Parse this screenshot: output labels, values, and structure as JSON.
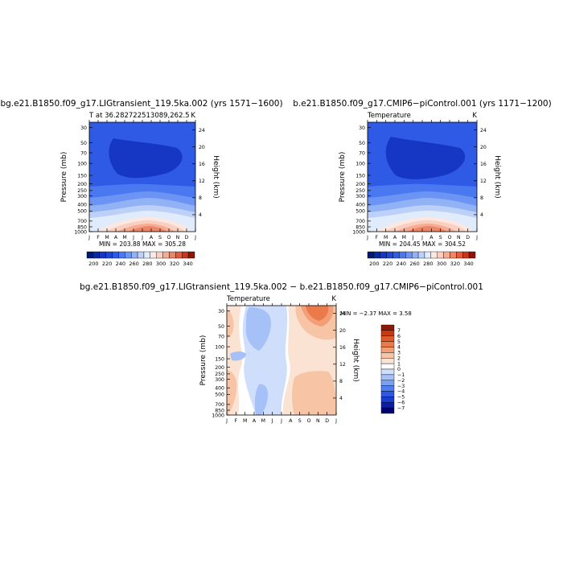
{
  "panels": [
    {
      "id": "p1",
      "title": "bg.e21.B1850.f09_g17.LIGtransient_119.5ka.002 (yrs 1571−1600)",
      "left_label": "T at 36.282722513089,262.5",
      "right_label": "K",
      "minmax": "MIN = 203.88 MAX = 305.28",
      "ylabel": "Pressure (mb)",
      "y2label": "Height (km)",
      "pressure_ticks": [
        "30",
        "50",
        "70",
        "100",
        "150",
        "200",
        "250",
        "300",
        "400",
        "500",
        "700",
        "850",
        "1000"
      ],
      "height_ticks": [
        "24",
        "20",
        "16",
        "12",
        "8",
        "4"
      ],
      "month_ticks": [
        "J",
        "F",
        "M",
        "A",
        "M",
        "J",
        "J",
        "A",
        "S",
        "O",
        "N",
        "D",
        "J"
      ],
      "colorbar_labels": [
        "200",
        "220",
        "240",
        "260",
        "280",
        "300",
        "320",
        "340"
      ]
    },
    {
      "id": "p2",
      "title": "b.e21.B1850.f09_g17.CMIP6−piControl.001 (yrs 1171−1200)",
      "left_label": "Temperature",
      "right_label": "K",
      "minmax": "MIN = 204.45 MAX = 304.52",
      "ylabel": "Pressure (mb)",
      "y2label": "Height (km)",
      "pressure_ticks": [
        "30",
        "50",
        "70",
        "100",
        "150",
        "200",
        "250",
        "300",
        "400",
        "500",
        "700",
        "850",
        "1000"
      ],
      "height_ticks": [
        "24",
        "20",
        "16",
        "12",
        "8",
        "4"
      ],
      "month_ticks": [
        "J",
        "F",
        "M",
        "A",
        "M",
        "J",
        "J",
        "A",
        "S",
        "O",
        "N",
        "D",
        "J"
      ],
      "colorbar_labels": [
        "200",
        "220",
        "240",
        "260",
        "280",
        "300",
        "320",
        "340"
      ]
    },
    {
      "id": "p3",
      "title": "bg.e21.B1850.f09_g17.LIGtransient_119.5ka.002 − b.e21.B1850.f09_g17.CMIP6−piControl.001",
      "left_label": "Temperature",
      "right_label": "K",
      "minmax": "MIN = −2.37 MAX =   3.58",
      "ylabel": "Pressure (mb)",
      "y2label": "Height (km)",
      "pressure_ticks": [
        "30",
        "50",
        "70",
        "100",
        "150",
        "200",
        "250",
        "300",
        "400",
        "500",
        "700",
        "850",
        "1000"
      ],
      "height_ticks": [
        "24",
        "20",
        "16",
        "12",
        "8",
        "4"
      ],
      "month_ticks": [
        "J",
        "F",
        "M",
        "A",
        "M",
        "J",
        "J",
        "A",
        "S",
        "O",
        "N",
        "D",
        "J"
      ],
      "colorbar_labels": [
        "7",
        "6",
        "5",
        "4",
        "3",
        "2",
        "1",
        "0",
        "−1",
        "−2",
        "−3",
        "−4",
        "−5",
        "−6",
        "−7"
      ]
    }
  ],
  "chart_data": [
    {
      "type": "heatmap",
      "title": "bg.e21.B1850.f09_g17.LIGtransient_119.5ka.002 (yrs 1571−1600)",
      "subtitle": "T at 36.282722513089,262.5",
      "units": "K",
      "x": [
        "J",
        "F",
        "M",
        "A",
        "M",
        "J",
        "J",
        "A",
        "S",
        "O",
        "N",
        "D",
        "J"
      ],
      "y_pressure_mb": [
        1000,
        850,
        700,
        500,
        400,
        300,
        250,
        200,
        150,
        100,
        70,
        50,
        30
      ],
      "z_summer_peak_K": [
        302,
        291,
        282,
        265,
        252,
        238,
        228,
        219,
        213,
        210,
        212,
        215,
        219
      ],
      "z_winter_K": [
        282,
        273,
        264,
        250,
        240,
        228,
        222,
        218,
        216,
        215,
        215,
        216,
        218
      ],
      "min": 203.88,
      "max": 305.28,
      "colorbar": {
        "min": 190,
        "max": 350,
        "step": 10,
        "labels": [
          200,
          220,
          240,
          260,
          280,
          300,
          320,
          340
        ]
      }
    },
    {
      "type": "heatmap",
      "title": "b.e21.B1850.f09_g17.CMIP6−piControl.001 (yrs 1171−1200)",
      "subtitle": "Temperature",
      "units": "K",
      "x": [
        "J",
        "F",
        "M",
        "A",
        "M",
        "J",
        "J",
        "A",
        "S",
        "O",
        "N",
        "D",
        "J"
      ],
      "y_pressure_mb": [
        1000,
        850,
        700,
        500,
        400,
        300,
        250,
        200,
        150,
        100,
        70,
        50,
        30
      ],
      "z_summer_peak_K": [
        301,
        290,
        281,
        264,
        251,
        237,
        227,
        218,
        212,
        209,
        211,
        214,
        218
      ],
      "z_winter_K": [
        282,
        273,
        264,
        250,
        240,
        228,
        222,
        218,
        216,
        215,
        215,
        216,
        218
      ],
      "min": 204.45,
      "max": 304.52,
      "colorbar": {
        "min": 190,
        "max": 350,
        "step": 10,
        "labels": [
          200,
          220,
          240,
          260,
          280,
          300,
          320,
          340
        ]
      }
    },
    {
      "type": "heatmap",
      "title": "bg.e21.B1850.f09_g17.LIGtransient_119.5ka.002 − b.e21.B1850.f09_g17.CMIP6−piControl.001",
      "subtitle": "Temperature",
      "units": "K",
      "x": [
        "J",
        "F",
        "M",
        "A",
        "M",
        "J",
        "J",
        "A",
        "S",
        "O",
        "N",
        "D",
        "J"
      ],
      "y_pressure_mb": [
        1000,
        850,
        700,
        500,
        400,
        300,
        250,
        200,
        150,
        100,
        70,
        50,
        30
      ],
      "min": -2.37,
      "max": 3.58,
      "colorbar": {
        "min": -8,
        "max": 8,
        "step": 1,
        "labels": [
          7,
          6,
          5,
          4,
          3,
          2,
          1,
          0,
          -1,
          -2,
          -3,
          -4,
          -5,
          -6,
          -7
        ]
      }
    }
  ],
  "colors": {
    "temp_scale": [
      "#001a72",
      "#0a2aa0",
      "#1636c4",
      "#2046d4",
      "#2f5ae6",
      "#4a78f0",
      "#6b94f4",
      "#92b2f6",
      "#bcd0f8",
      "#e0ebfb",
      "#fde8e1",
      "#fbcfbf",
      "#f6ac93",
      "#ee8566",
      "#e35a3e",
      "#c8361f",
      "#8e1308"
    ],
    "diff_scale": [
      "#00006e",
      "#0c1da6",
      "#1c3bd0",
      "#2d58e6",
      "#4f7ef0",
      "#7aa0f4",
      "#a6c1f7",
      "#cfdefa",
      "#ffffff",
      "#fbe3d4",
      "#f7c4a6",
      "#f29e77",
      "#eb7a4b",
      "#e15a2a",
      "#c63a12",
      "#8a1a06"
    ]
  }
}
